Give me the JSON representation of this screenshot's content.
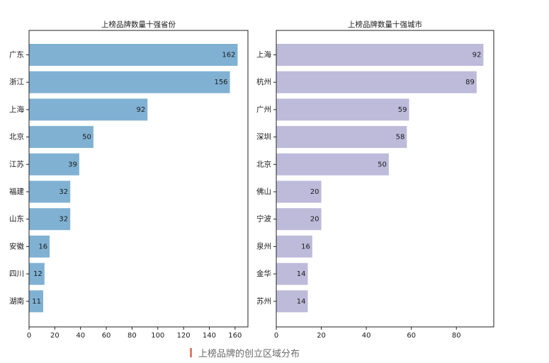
{
  "chart_data": [
    {
      "type": "bar",
      "orientation": "horizontal",
      "title": "上榜品牌数量十强省份",
      "categories": [
        "广东",
        "浙江",
        "上海",
        "北京",
        "江苏",
        "福建",
        "山东",
        "安徽",
        "四川",
        "湖南"
      ],
      "values": [
        162,
        156,
        92,
        50,
        39,
        32,
        32,
        16,
        12,
        11
      ],
      "value_labels": [
        "162",
        "156",
        "92",
        "50",
        "39",
        "32",
        "32",
        "16",
        "12",
        "11"
      ],
      "xticks": [
        0,
        20,
        40,
        60,
        80,
        100,
        120,
        140,
        160
      ],
      "xtick_labels": [
        "0",
        "20",
        "40",
        "60",
        "80",
        "100",
        "120",
        "140",
        "160"
      ],
      "xlim": [
        0,
        170
      ],
      "color": "#80b1d3",
      "grid": false
    },
    {
      "type": "bar",
      "orientation": "horizontal",
      "title": "上榜品牌数量十强城市",
      "categories": [
        "上海",
        "杭州",
        "广州",
        "深圳",
        "北京",
        "佛山",
        "宁波",
        "泉州",
        "金华",
        "苏州"
      ],
      "values": [
        92,
        89,
        59,
        58,
        50,
        20,
        20,
        16,
        14,
        14
      ],
      "value_labels": [
        "92",
        "89",
        "59",
        "58",
        "50",
        "20",
        "20",
        "16",
        "14",
        "14"
      ],
      "xticks": [
        0,
        20,
        40,
        60,
        80
      ],
      "xtick_labels": [
        "0",
        "20",
        "40",
        "60",
        "80"
      ],
      "xlim": [
        0,
        96.6
      ],
      "color": "#bebada",
      "grid": false
    }
  ],
  "caption": {
    "text": "上榜品牌的创立区域分布",
    "accent_color": "#e07b62"
  }
}
